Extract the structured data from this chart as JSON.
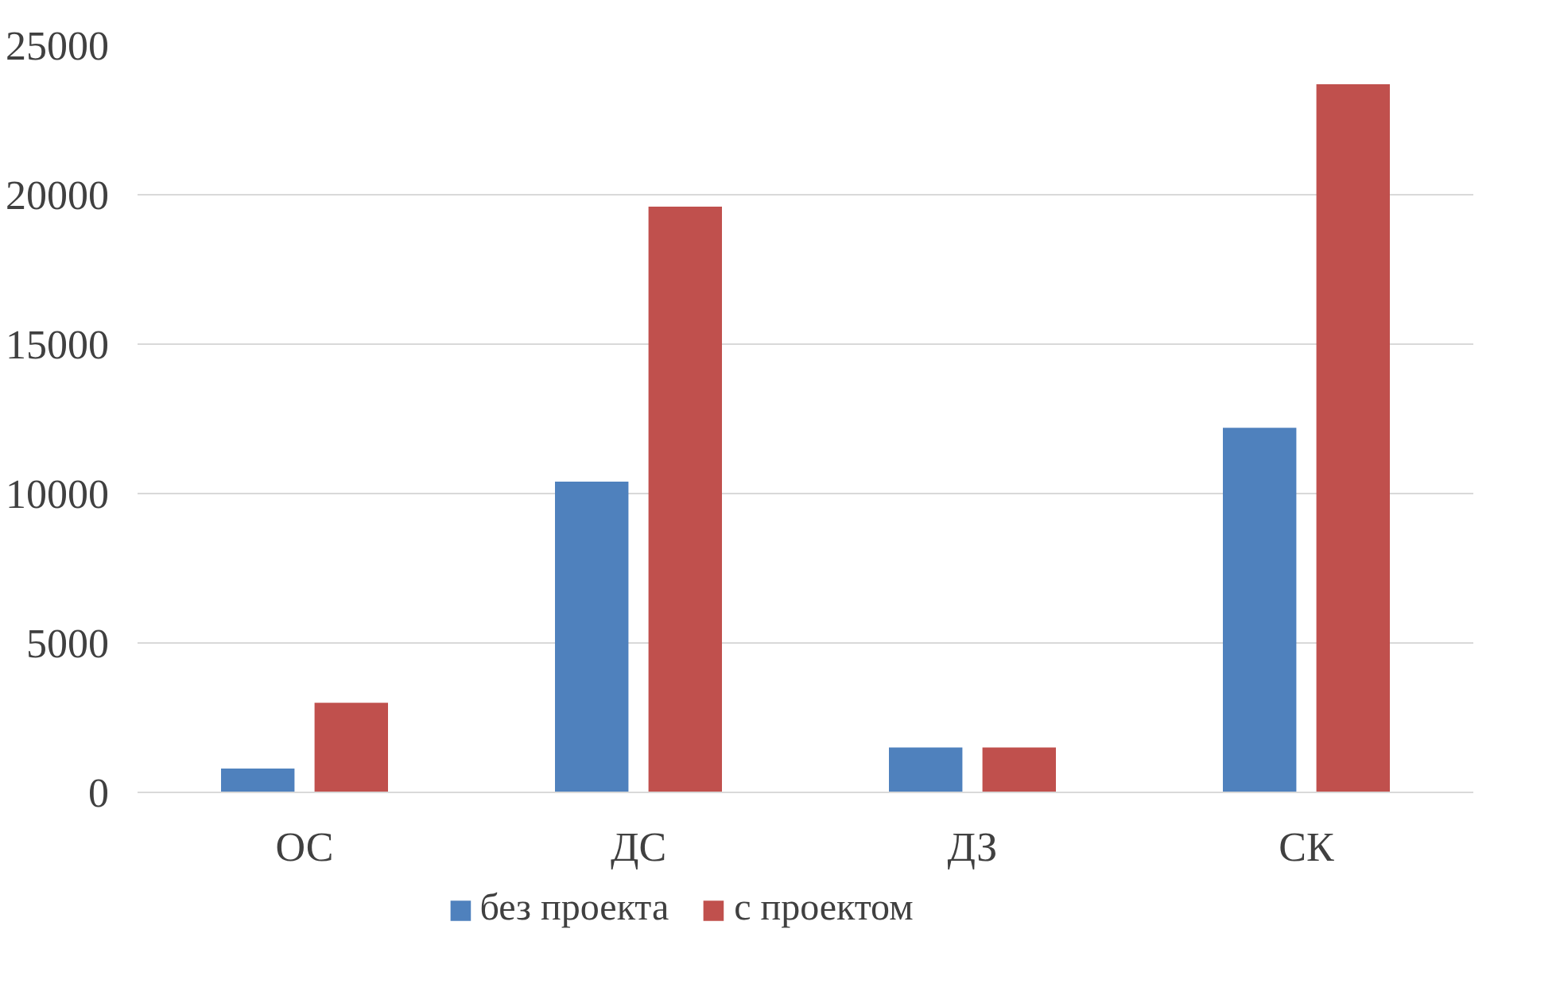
{
  "chart_data": {
    "type": "bar",
    "categories": [
      "ОС",
      "ДС",
      "ДЗ",
      "СК"
    ],
    "series": [
      {
        "name": "без проекта",
        "color": "#4f81bd",
        "values": [
          800,
          10400,
          1500,
          12200
        ]
      },
      {
        "name": "с проектом",
        "color": "#c0504d",
        "values": [
          3000,
          19600,
          1500,
          23700
        ]
      }
    ],
    "ylim": [
      0,
      25000
    ],
    "yticks": [
      0,
      5000,
      10000,
      15000,
      20000,
      25000
    ],
    "grid": "y",
    "legend": "bottom"
  }
}
